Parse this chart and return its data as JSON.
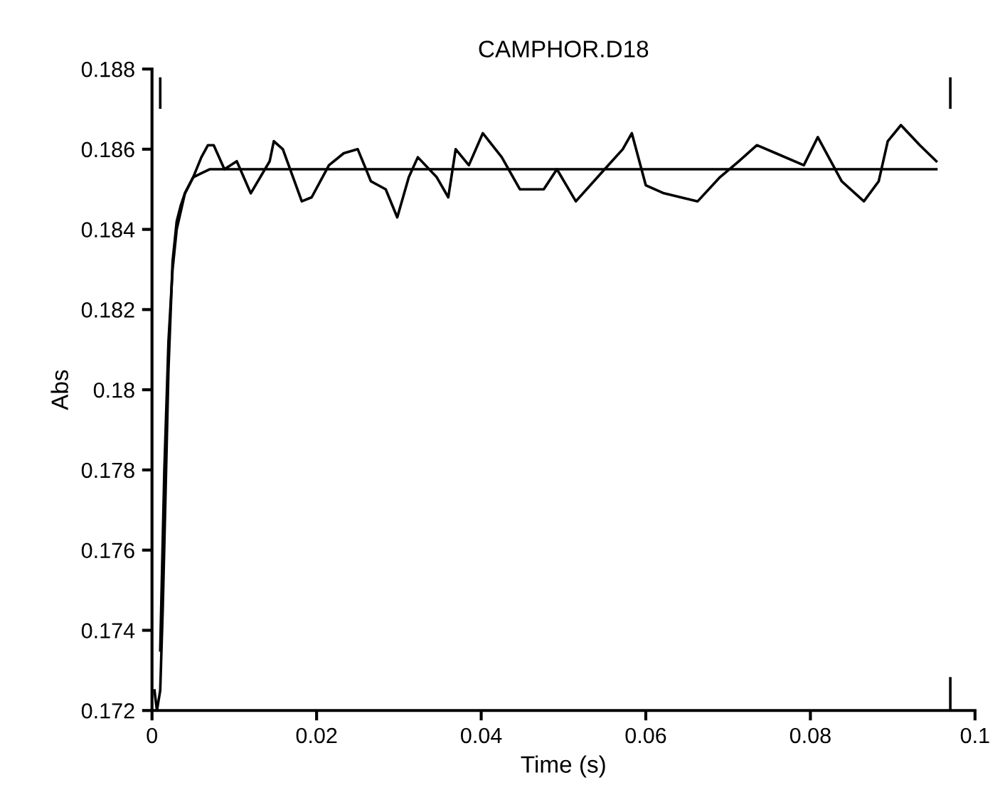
{
  "chart_data": {
    "type": "line",
    "title": "CAMPHOR.D18",
    "xlabel": "Time (s)",
    "ylabel": "Abs",
    "xlim": [
      0,
      0.1
    ],
    "ylim": [
      0.172,
      0.188
    ],
    "xticks": [
      0,
      0.02,
      0.04,
      0.06,
      0.08,
      0.1
    ],
    "yticks": [
      0.172,
      0.174,
      0.176,
      0.178,
      0.18,
      0.182,
      0.184,
      0.186,
      0.188
    ],
    "grid": false,
    "legend": false,
    "marker": "none",
    "line_style": "solid",
    "series": [
      {
        "color": "#000000",
        "x": [
          0.0003,
          0.0006,
          0.001,
          0.0013,
          0.0016,
          0.002,
          0.0025,
          0.003,
          0.0035,
          0.004,
          0.005,
          0.006,
          0.0068,
          0.0075,
          0.0088,
          0.0103,
          0.012,
          0.0143,
          0.0148,
          0.0159,
          0.0182,
          0.0194,
          0.0215,
          0.0233,
          0.025,
          0.0266,
          0.0284,
          0.0298,
          0.0312,
          0.0323,
          0.0346,
          0.036,
          0.0369,
          0.0385,
          0.0402,
          0.0425,
          0.0447,
          0.0476,
          0.0492,
          0.0515,
          0.055,
          0.0572,
          0.0583,
          0.06,
          0.0622,
          0.0663,
          0.069,
          0.0713,
          0.0735,
          0.0758,
          0.0792,
          0.0809,
          0.0838,
          0.0865,
          0.0883,
          0.0894,
          0.091,
          0.0933,
          0.0953
        ],
        "values": [
          0.1725,
          0.172,
          0.1725,
          0.1745,
          0.177,
          0.1805,
          0.1832,
          0.1842,
          0.1846,
          0.1849,
          0.1853,
          0.1858,
          0.1861,
          0.1861,
          0.1855,
          0.1857,
          0.1849,
          0.1857,
          0.1862,
          0.186,
          0.1847,
          0.1848,
          0.1856,
          0.1859,
          0.186,
          0.1852,
          0.185,
          0.1843,
          0.1853,
          0.1858,
          0.1853,
          0.1848,
          0.186,
          0.1856,
          0.1864,
          0.1858,
          0.185,
          0.185,
          0.1855,
          0.1847,
          0.1855,
          0.186,
          0.1864,
          0.1851,
          0.1849,
          0.1847,
          0.1853,
          0.1857,
          0.1861,
          0.1859,
          0.1856,
          0.1863,
          0.1852,
          0.1847,
          0.1852,
          0.1862,
          0.1866,
          0.1861,
          0.1857
        ]
      },
      {
        "color": "#000000",
        "x": [
          0.001,
          0.0015,
          0.002,
          0.0025,
          0.003,
          0.004,
          0.005,
          0.006,
          0.007,
          0.0953
        ],
        "values": [
          0.1735,
          0.178,
          0.1812,
          0.183,
          0.184,
          0.1849,
          0.1853,
          0.1854,
          0.1855,
          0.1855
        ]
      }
    ]
  }
}
